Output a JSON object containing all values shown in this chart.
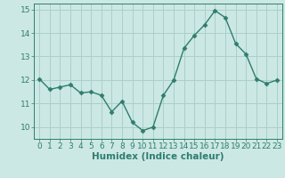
{
  "x": [
    0,
    1,
    2,
    3,
    4,
    5,
    6,
    7,
    8,
    9,
    10,
    11,
    12,
    13,
    14,
    15,
    16,
    17,
    18,
    19,
    20,
    21,
    22,
    23
  ],
  "y": [
    12.05,
    11.6,
    11.7,
    11.8,
    11.45,
    11.5,
    11.35,
    10.65,
    11.1,
    10.2,
    9.85,
    10.0,
    11.35,
    12.0,
    13.35,
    13.9,
    14.35,
    14.95,
    14.65,
    13.55,
    13.1,
    12.05,
    11.85,
    12.0
  ],
  "line_color": "#2e7d6e",
  "marker": "D",
  "marker_size": 2.5,
  "bg_color": "#cce8e4",
  "grid_color": "#aacfcb",
  "xlabel": "Humidex (Indice chaleur)",
  "xlim": [
    -0.5,
    23.5
  ],
  "ylim": [
    9.5,
    15.25
  ],
  "yticks": [
    10,
    11,
    12,
    13,
    14,
    15
  ],
  "xticks": [
    0,
    1,
    2,
    3,
    4,
    5,
    6,
    7,
    8,
    9,
    10,
    11,
    12,
    13,
    14,
    15,
    16,
    17,
    18,
    19,
    20,
    21,
    22,
    23
  ],
  "font_color": "#2e7d6e",
  "tick_font_size": 6.5,
  "xlabel_font_size": 7.5
}
